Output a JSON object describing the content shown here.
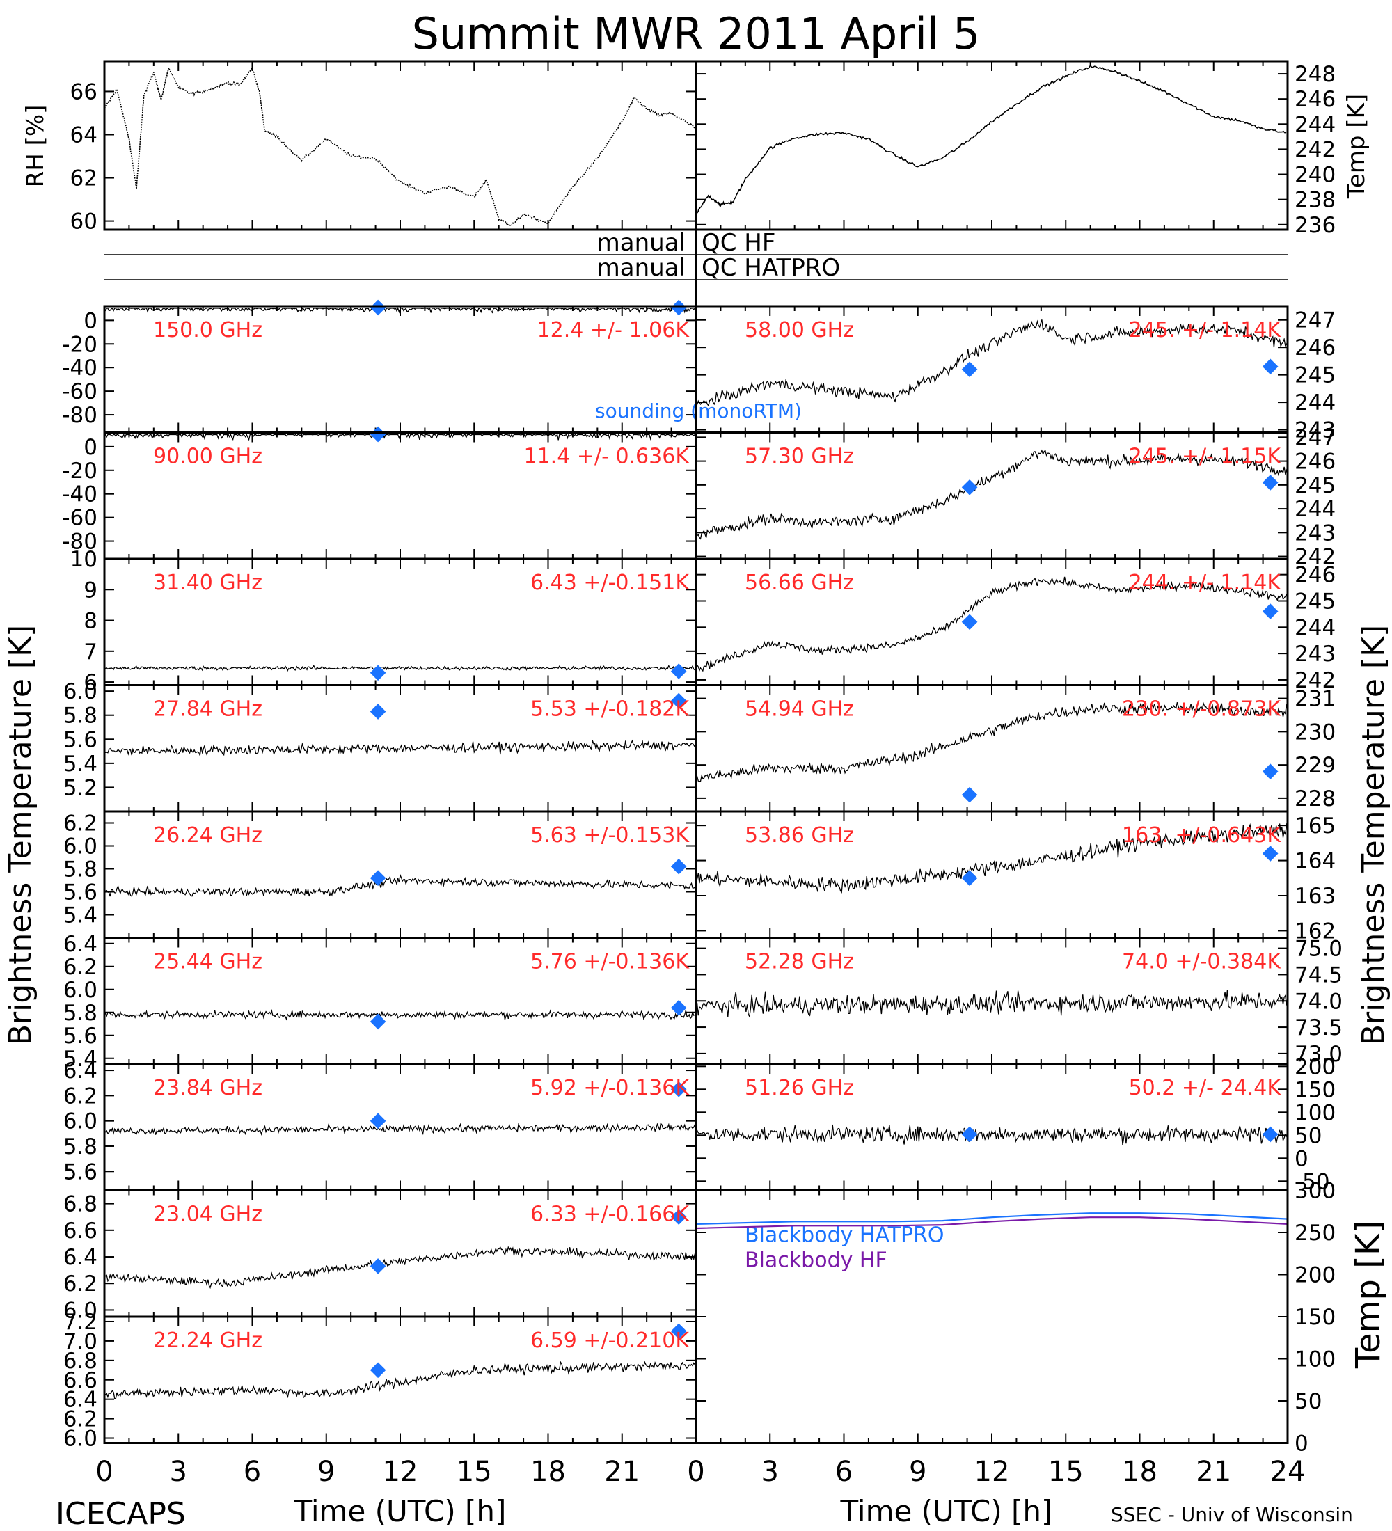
{
  "title": "Summit MWR 2011 April  5",
  "footer": {
    "left": "ICECAPS",
    "right": "SSEC - Univ of Wisconsin"
  },
  "qc_labels": {
    "hf": {
      "left": "manual",
      "right": "QC HF"
    },
    "hatpro": {
      "left": "manual",
      "right": "QC HATPRO"
    }
  },
  "colors": {
    "trace": "#000000",
    "label": "#ff2a2a",
    "sounding": "#1a73ff",
    "hatpro_line": "#1a73ff",
    "hf_line": "#7a1aa8"
  },
  "chart_data": [
    {
      "id": "rh",
      "type": "line",
      "ylabel": "RH [%]",
      "xlim": [
        0,
        24
      ],
      "ylim": [
        59.6,
        67.4
      ],
      "yticks": [
        60,
        62,
        64,
        66
      ],
      "series": [
        {
          "x": [
            0,
            0.5,
            1,
            1.3,
            1.6,
            2,
            2.3,
            2.6,
            3,
            3.5,
            4,
            4.5,
            5,
            5.5,
            6,
            6.3,
            6.5,
            7,
            8,
            9,
            10,
            11,
            12,
            13,
            14,
            15,
            15.5,
            16,
            16.5,
            17,
            18,
            19,
            20,
            21,
            21.5,
            22,
            22.5,
            23,
            24
          ],
          "y": [
            65.2,
            66.1,
            63.8,
            61.5,
            65.8,
            66.9,
            65.6,
            67.1,
            66.2,
            65.9,
            66.0,
            66.2,
            66.4,
            66.3,
            67.1,
            65.9,
            64.2,
            63.9,
            62.8,
            63.8,
            63.0,
            62.9,
            61.8,
            61.3,
            61.6,
            61.1,
            61.9,
            60.1,
            59.8,
            60.3,
            59.9,
            61.6,
            62.9,
            64.6,
            65.7,
            65.2,
            64.9,
            65.0,
            64.3
          ]
        }
      ]
    },
    {
      "id": "temp",
      "type": "line",
      "ylabel": "Temp [K]",
      "xlim": [
        0,
        24
      ],
      "ylim": [
        235.6,
        249
      ],
      "yticks": [
        236,
        238,
        240,
        242,
        244,
        246,
        248
      ],
      "series": [
        {
          "x": [
            0,
            0.5,
            1,
            1.5,
            2,
            3,
            4,
            5,
            6,
            7,
            8,
            9,
            10,
            11,
            12,
            13,
            14,
            15,
            16,
            17,
            18,
            19,
            20,
            21,
            22,
            23,
            24
          ],
          "y": [
            236.8,
            238.3,
            237.6,
            237.8,
            239.6,
            242.1,
            242.9,
            243.2,
            243.3,
            242.8,
            241.6,
            240.6,
            241.3,
            242.6,
            244.2,
            245.6,
            246.9,
            247.8,
            248.6,
            248.2,
            247.4,
            246.6,
            245.6,
            244.6,
            244.3,
            243.6,
            243.3
          ]
        }
      ]
    },
    {
      "id": "ch150",
      "type": "scatter",
      "freq": "150.0 GHz",
      "stat": "12.4 +/-  1.06K",
      "ylim": [
        -95,
        12
      ],
      "yticks": [
        0,
        -20,
        -40,
        -60,
        -80
      ],
      "yticklabels": [
        "0",
        "-20",
        "-40",
        "-60",
        "-80"
      ],
      "trace": [
        {
          "x": 0,
          "y": 10
        },
        {
          "x": 24,
          "y": 10
        }
      ],
      "noise": 0.2,
      "sounding": [
        {
          "x": 11.1,
          "y": 11
        },
        {
          "x": 23.3,
          "y": 11
        }
      ],
      "note": "sounding (monoRTM)"
    },
    {
      "id": "ch90",
      "type": "scatter",
      "freq": "90.00 GHz",
      "stat": "11.4 +/- 0.636K",
      "ylim": [
        -95,
        12
      ],
      "yticks": [
        0,
        -20,
        -40,
        -60,
        -80
      ],
      "yticklabels": [
        "0",
        "-20",
        "-40",
        "-60",
        "-80"
      ],
      "trace": [
        {
          "x": 0,
          "y": 11
        },
        {
          "x": 24,
          "y": 11
        }
      ],
      "noise": 0.3,
      "sounding": [
        {
          "x": 11.1,
          "y": 10.5
        }
      ]
    },
    {
      "id": "ch314",
      "type": "scatter",
      "freq": "31.40 GHz",
      "stat": "6.43 +/-0.151K",
      "ylim": [
        5.9,
        10
      ],
      "yticks": [
        6,
        7,
        8,
        9,
        10
      ],
      "yticklabels": [
        "6",
        "7",
        "8",
        "9",
        "10"
      ],
      "trace": [
        {
          "x": 0,
          "y": 6.45
        },
        {
          "x": 24,
          "y": 6.45
        }
      ],
      "noise": 0.12,
      "sounding": [
        {
          "x": 11.1,
          "y": 6.3
        },
        {
          "x": 23.3,
          "y": 6.35
        }
      ]
    },
    {
      "id": "ch2784",
      "type": "scatter",
      "freq": "27.84 GHz",
      "stat": "5.53 +/-0.182K",
      "ylim": [
        5.0,
        6.05
      ],
      "yticks": [
        5.2,
        5.4,
        5.6,
        5.8,
        6.0
      ],
      "yticklabels": [
        "5.2",
        "5.4",
        "5.6",
        "5.8",
        "6.0"
      ],
      "trace": [
        {
          "x": 0,
          "y": 5.5
        },
        {
          "x": 24,
          "y": 5.55
        }
      ],
      "noise": 0.3,
      "sounding": [
        {
          "x": 11.1,
          "y": 5.83
        },
        {
          "x": 23.3,
          "y": 5.92
        }
      ]
    },
    {
      "id": "ch2624",
      "type": "scatter",
      "freq": "26.24 GHz",
      "stat": "5.63 +/-0.153K",
      "ylim": [
        5.2,
        6.3
      ],
      "yticks": [
        5.4,
        5.6,
        5.8,
        6.0,
        6.2
      ],
      "yticklabels": [
        "5.4",
        "5.6",
        "5.8",
        "6.0",
        "6.2"
      ],
      "trace": [
        {
          "x": 0,
          "y": 5.6
        },
        {
          "x": 9,
          "y": 5.6
        },
        {
          "x": 12,
          "y": 5.7
        },
        {
          "x": 24,
          "y": 5.65
        }
      ],
      "noise": 0.25,
      "sounding": [
        {
          "x": 11.1,
          "y": 5.72
        },
        {
          "x": 23.3,
          "y": 5.82
        }
      ]
    },
    {
      "id": "ch2544",
      "type": "scatter",
      "freq": "25.44 GHz",
      "stat": "5.76 +/-0.136K",
      "ylim": [
        5.35,
        6.45
      ],
      "yticks": [
        5.4,
        5.6,
        5.8,
        6.0,
        6.2,
        6.4
      ],
      "yticklabels": [
        "5.4",
        "5.6",
        "5.8",
        "6.0",
        "6.2",
        "6.4"
      ],
      "trace": [
        {
          "x": 0,
          "y": 5.78
        },
        {
          "x": 24,
          "y": 5.78
        }
      ],
      "noise": 0.22,
      "sounding": [
        {
          "x": 11.1,
          "y": 5.72
        },
        {
          "x": 23.3,
          "y": 5.84
        }
      ]
    },
    {
      "id": "ch2384",
      "type": "scatter",
      "freq": "23.84 GHz",
      "stat": "5.92 +/-0.136K",
      "ylim": [
        5.45,
        6.45
      ],
      "yticks": [
        5.6,
        5.8,
        6.0,
        6.2,
        6.4
      ],
      "yticklabels": [
        "5.6",
        "5.8",
        "6.0",
        "6.2",
        "6.4"
      ],
      "trace": [
        {
          "x": 0,
          "y": 5.92
        },
        {
          "x": 24,
          "y": 5.95
        }
      ],
      "noise": 0.22,
      "sounding": [
        {
          "x": 11.1,
          "y": 6.0
        },
        {
          "x": 23.3,
          "y": 6.25
        }
      ]
    },
    {
      "id": "ch2304",
      "type": "scatter",
      "freq": "23.04 GHz",
      "stat": "6.33 +/-0.166K",
      "ylim": [
        5.95,
        6.9
      ],
      "yticks": [
        6.0,
        6.2,
        6.4,
        6.6,
        6.8
      ],
      "yticklabels": [
        "6.0",
        "6.2",
        "6.4",
        "6.6",
        "6.8"
      ],
      "trace": [
        {
          "x": 0,
          "y": 6.25
        },
        {
          "x": 5,
          "y": 6.2
        },
        {
          "x": 9,
          "y": 6.3
        },
        {
          "x": 16,
          "y": 6.45
        },
        {
          "x": 24,
          "y": 6.4
        }
      ],
      "noise": 0.25,
      "sounding": [
        {
          "x": 11.1,
          "y": 6.33
        },
        {
          "x": 23.3,
          "y": 6.7
        }
      ]
    },
    {
      "id": "ch2224",
      "type": "scatter",
      "freq": "22.24 GHz",
      "stat": "6.59 +/-0.210K",
      "ylim": [
        5.95,
        7.25
      ],
      "yticks": [
        6.0,
        6.2,
        6.4,
        6.6,
        6.8,
        7.0,
        7.2
      ],
      "yticklabels": [
        "6.0",
        "6.2",
        "6.4",
        "6.6",
        "6.8",
        "7.0",
        "7.2"
      ],
      "trace": [
        {
          "x": 0,
          "y": 6.45
        },
        {
          "x": 6,
          "y": 6.5
        },
        {
          "x": 9,
          "y": 6.45
        },
        {
          "x": 15,
          "y": 6.7
        },
        {
          "x": 24,
          "y": 6.75
        }
      ],
      "noise": 0.3,
      "sounding": [
        {
          "x": 11.1,
          "y": 6.7
        },
        {
          "x": 23.3,
          "y": 7.1
        }
      ]
    },
    {
      "id": "ch5800",
      "type": "scatter",
      "freq": "58.00 GHz",
      "stat": "245. +/-  1.14K",
      "ylim": [
        242.9,
        247.5
      ],
      "yticks": [
        243,
        244,
        245,
        246,
        247
      ],
      "yticklabels": [
        "243",
        "244",
        "245",
        "246",
        "247"
      ],
      "trace": [
        {
          "x": 0,
          "y": 243.9
        },
        {
          "x": 3,
          "y": 244.7
        },
        {
          "x": 5,
          "y": 244.5
        },
        {
          "x": 8,
          "y": 244.2
        },
        {
          "x": 10,
          "y": 245.1
        },
        {
          "x": 11,
          "y": 245.7
        },
        {
          "x": 12,
          "y": 246.1
        },
        {
          "x": 13,
          "y": 246.6
        },
        {
          "x": 14,
          "y": 246.9
        },
        {
          "x": 15,
          "y": 246.3
        },
        {
          "x": 17,
          "y": 246.5
        },
        {
          "x": 20,
          "y": 246.7
        },
        {
          "x": 22,
          "y": 246.6
        },
        {
          "x": 24,
          "y": 246.1
        }
      ],
      "noise": 0.35,
      "sounding": [
        {
          "x": 11.1,
          "y": 245.2
        },
        {
          "x": 23.3,
          "y": 245.3
        }
      ]
    },
    {
      "id": "ch5730",
      "type": "scatter",
      "freq": "57.30 GHz",
      "stat": "245. +/-  1.15K",
      "ylim": [
        241.9,
        247.2
      ],
      "yticks": [
        242,
        243,
        244,
        245,
        246,
        247
      ],
      "yticklabels": [
        "242",
        "243",
        "244",
        "245",
        "246",
        "247"
      ],
      "trace": [
        {
          "x": 0,
          "y": 242.9
        },
        {
          "x": 3,
          "y": 243.6
        },
        {
          "x": 5,
          "y": 243.4
        },
        {
          "x": 8,
          "y": 243.6
        },
        {
          "x": 10,
          "y": 244.3
        },
        {
          "x": 11,
          "y": 244.8
        },
        {
          "x": 12,
          "y": 245.3
        },
        {
          "x": 14,
          "y": 246.4
        },
        {
          "x": 15,
          "y": 246.0
        },
        {
          "x": 17,
          "y": 246.0
        },
        {
          "x": 20,
          "y": 246.1
        },
        {
          "x": 22,
          "y": 246.0
        },
        {
          "x": 24,
          "y": 245.6
        }
      ],
      "noise": 0.35,
      "sounding": [
        {
          "x": 11.1,
          "y": 244.9
        },
        {
          "x": 23.3,
          "y": 245.1
        }
      ]
    },
    {
      "id": "ch5666",
      "type": "scatter",
      "freq": "56.66 GHz",
      "stat": "244. +/-  1.14K",
      "ylim": [
        241.8,
        246.6
      ],
      "yticks": [
        242,
        243,
        244,
        245,
        246
      ],
      "yticklabels": [
        "242",
        "243",
        "244",
        "245",
        "246"
      ],
      "trace": [
        {
          "x": 0,
          "y": 242.4
        },
        {
          "x": 3,
          "y": 243.4
        },
        {
          "x": 5,
          "y": 243.1
        },
        {
          "x": 8,
          "y": 243.3
        },
        {
          "x": 10,
          "y": 243.9
        },
        {
          "x": 11,
          "y": 244.6
        },
        {
          "x": 12,
          "y": 245.3
        },
        {
          "x": 14,
          "y": 245.8
        },
        {
          "x": 15,
          "y": 245.7
        },
        {
          "x": 17,
          "y": 245.4
        },
        {
          "x": 20,
          "y": 245.6
        },
        {
          "x": 22,
          "y": 245.4
        },
        {
          "x": 24,
          "y": 245.1
        }
      ],
      "noise": 0.25,
      "sounding": [
        {
          "x": 11.1,
          "y": 244.2
        },
        {
          "x": 23.3,
          "y": 244.6
        }
      ]
    },
    {
      "id": "ch5494",
      "type": "scatter",
      "freq": "54.94 GHz",
      "stat": "230. +/-0.873K",
      "ylim": [
        227.6,
        231.4
      ],
      "yticks": [
        228,
        229,
        230,
        231
      ],
      "yticklabels": [
        "228",
        "229",
        "230",
        "231"
      ],
      "trace": [
        {
          "x": 0,
          "y": 228.6
        },
        {
          "x": 3,
          "y": 228.9
        },
        {
          "x": 6,
          "y": 228.9
        },
        {
          "x": 9,
          "y": 229.3
        },
        {
          "x": 11,
          "y": 229.8
        },
        {
          "x": 14,
          "y": 230.5
        },
        {
          "x": 16,
          "y": 230.7
        },
        {
          "x": 20,
          "y": 230.7
        },
        {
          "x": 24,
          "y": 230.6
        }
      ],
      "noise": 0.35,
      "sounding": [
        {
          "x": 11.1,
          "y": 228.1
        },
        {
          "x": 23.3,
          "y": 228.8
        }
      ]
    },
    {
      "id": "ch5386",
      "type": "scatter",
      "freq": "53.86 GHz",
      "stat": "163. +/-0.643K",
      "ylim": [
        161.8,
        165.4
      ],
      "yticks": [
        162,
        163,
        164,
        165
      ],
      "yticklabels": [
        "162",
        "163",
        "164",
        "165"
      ],
      "trace": [
        {
          "x": 0,
          "y": 163.5
        },
        {
          "x": 6,
          "y": 163.3
        },
        {
          "x": 10,
          "y": 163.6
        },
        {
          "x": 14,
          "y": 164.0
        },
        {
          "x": 18,
          "y": 164.5
        },
        {
          "x": 24,
          "y": 164.9
        }
      ],
      "noise": 0.45,
      "sounding": [
        {
          "x": 11.1,
          "y": 163.5
        },
        {
          "x": 23.3,
          "y": 164.2
        }
      ]
    },
    {
      "id": "ch5228",
      "type": "scatter",
      "freq": "52.28 GHz",
      "stat": "74.0 +/-0.384K",
      "ylim": [
        72.8,
        75.2
      ],
      "yticks": [
        73.0,
        73.5,
        74.0,
        74.5,
        75.0
      ],
      "yticklabels": [
        "73.0",
        "73.5",
        "74.0",
        "74.5",
        "75.0"
      ],
      "trace": [
        {
          "x": 0,
          "y": 73.9
        },
        {
          "x": 24,
          "y": 74.0
        }
      ],
      "noise": 0.6,
      "sounding": []
    },
    {
      "id": "ch5126",
      "type": "scatter",
      "freq": "51.26 GHz",
      "stat": "50.2 +/-  24.4K",
      "ylim": [
        -70,
        205
      ],
      "yticks": [
        -50,
        0,
        50,
        100,
        150,
        200
      ],
      "yticklabels": [
        "-50",
        "0",
        "50",
        "100",
        "150",
        "200"
      ],
      "trace": [
        {
          "x": 0,
          "y": 52
        },
        {
          "x": 24,
          "y": 52
        }
      ],
      "noise": 0.5,
      "sounding": [
        {
          "x": 11.1,
          "y": 52
        },
        {
          "x": 23.3,
          "y": 52
        }
      ]
    },
    {
      "id": "blackbody",
      "type": "line",
      "ylabel": "Temp [K]",
      "xlim": [
        0,
        24
      ],
      "ylim": [
        0,
        300
      ],
      "yticks": [
        0,
        50,
        100,
        150,
        200,
        250,
        300
      ],
      "series": [
        {
          "name": "Blackbody HATPRO",
          "x": [
            0,
            4,
            8,
            10,
            12,
            14,
            16,
            18,
            20,
            22,
            24
          ],
          "y": [
            260,
            263,
            263,
            264,
            268,
            271,
            273,
            273,
            272,
            269,
            266
          ]
        },
        {
          "name": "Blackbody HF",
          "x": [
            0,
            4,
            8,
            10,
            12,
            14,
            16,
            18,
            20,
            22,
            24
          ],
          "y": [
            255,
            258,
            258,
            259,
            263,
            266,
            268,
            268,
            266,
            263,
            260
          ]
        }
      ]
    }
  ],
  "axes": {
    "left_ylabel": "Brightness Temperature [K]",
    "right_ylabel": "Brightness Temperature [K]",
    "xlabel": "Time (UTC) [h]",
    "left_xticks": [
      "0",
      "3",
      "6",
      "9",
      "12",
      "15",
      "18",
      "21"
    ],
    "right_xticks": [
      "0",
      "3",
      "6",
      "9",
      "12",
      "15",
      "18",
      "21",
      "24"
    ]
  }
}
